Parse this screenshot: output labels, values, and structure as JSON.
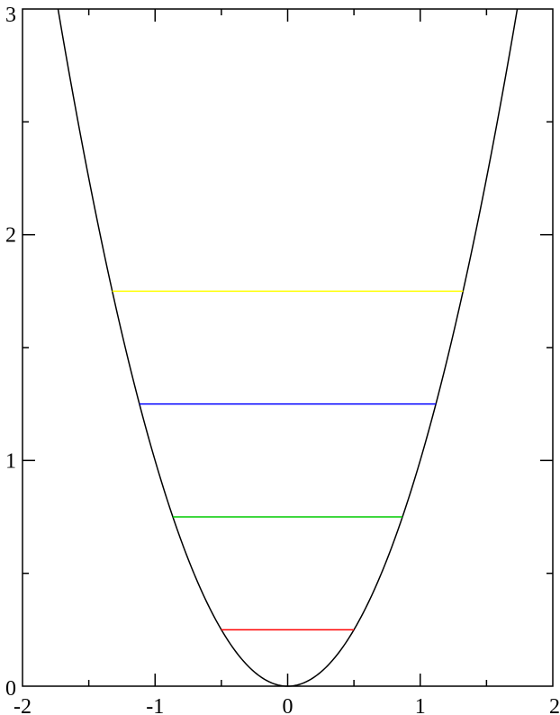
{
  "chart_data": {
    "type": "line",
    "title": "",
    "xlabel": "",
    "ylabel": "",
    "xlim": [
      -2,
      2
    ],
    "ylim": [
      0,
      3
    ],
    "x_ticks": [
      -2,
      -1,
      0,
      1,
      2
    ],
    "x_tick_labels": [
      "-2",
      "-1",
      "0",
      "1",
      "2"
    ],
    "y_ticks": [
      0,
      1,
      2,
      3
    ],
    "y_tick_labels": [
      "0",
      "1",
      "2",
      "3"
    ],
    "x_minor_step": 0.5,
    "y_minor_step": 0.5,
    "grid": false,
    "legend": "none",
    "series": [
      {
        "kind": "curve",
        "function": "y = x^2",
        "x_range": [
          -1.732,
          1.732
        ],
        "color": "#000000"
      },
      {
        "kind": "level",
        "y": 0.25,
        "x_range": [
          -0.5,
          0.5
        ],
        "color": "#ff0000"
      },
      {
        "kind": "level",
        "y": 0.75,
        "x_range": [
          -0.866,
          0.866
        ],
        "color": "#00cc00"
      },
      {
        "kind": "level",
        "y": 1.25,
        "x_range": [
          -1.118,
          1.118
        ],
        "color": "#0000ff"
      },
      {
        "kind": "level",
        "y": 1.75,
        "x_range": [
          -1.323,
          1.323
        ],
        "color": "#ffff00"
      }
    ]
  }
}
